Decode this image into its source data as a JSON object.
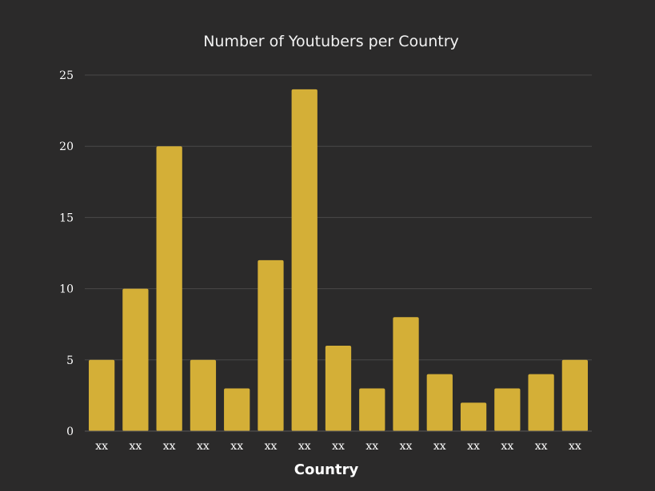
{
  "chart_data": {
    "type": "bar",
    "title": "Number of Youtubers per Country",
    "xlabel": "Country",
    "ylabel": "",
    "categories": [
      "xx",
      "xx",
      "xx",
      "xx",
      "xx",
      "xx",
      "xx",
      "xx",
      "xx",
      "xx",
      "xx",
      "xx",
      "xx",
      "xx",
      "xx"
    ],
    "values": [
      5,
      10,
      20,
      5,
      3,
      12,
      24,
      6,
      3,
      8,
      4,
      2,
      3,
      4,
      5
    ],
    "ylim": [
      0,
      25
    ],
    "yticks": [
      0,
      5,
      10,
      15,
      20,
      25
    ],
    "grid": true,
    "legend": "none",
    "bar_color": "#d4af37",
    "background_color": "#2b2a2a",
    "grid_color": "#4a4848",
    "text_color": "#ffffff"
  }
}
